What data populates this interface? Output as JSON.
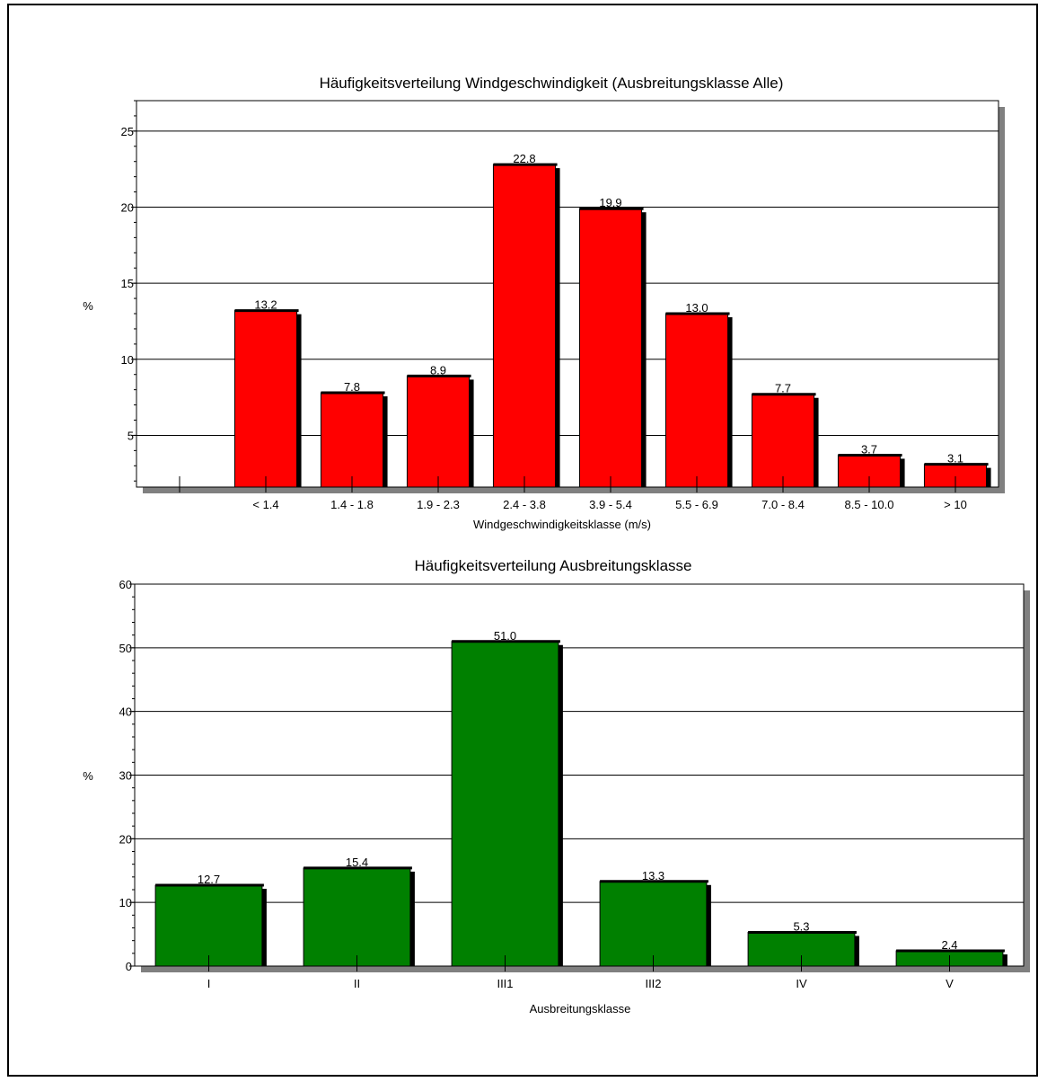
{
  "chart_data": [
    {
      "type": "bar",
      "title": "Häufigkeitsverteilung Windgeschwindigkeit (Ausbreitungsklasse Alle)",
      "xlabel": "Windgeschwindigkeitsklasse (m/s)",
      "ylabel": "%",
      "categories": [
        "",
        "< 1.4",
        "1.4 - 1.8",
        "1.9 - 2.3",
        "2.4 - 3.8",
        "3.9 - 5.4",
        "5.5 - 6.9",
        "7.0 - 8.4",
        "8.5 - 10.0",
        "> 10"
      ],
      "values": [
        null,
        13.2,
        7.8,
        8.9,
        22.8,
        19.9,
        13.0,
        7.7,
        3.7,
        3.1
      ],
      "data_labels": [
        "",
        "13.2",
        "7.8",
        "8.9",
        "22.8",
        "19.9",
        "13.0",
        "7.7",
        "3.7",
        "3.1"
      ],
      "yticks": [
        5,
        10,
        15,
        20,
        25
      ],
      "ylim": [
        1.6,
        27
      ],
      "color": "#ff0000",
      "grid": true
    },
    {
      "type": "bar",
      "title": "Häufigkeitsverteilung Ausbreitungsklasse",
      "xlabel": "Ausbreitungsklasse",
      "ylabel": "%",
      "categories": [
        "I",
        "II",
        "III1",
        "III2",
        "IV",
        "V"
      ],
      "values": [
        12.7,
        15.4,
        51.0,
        13.3,
        5.3,
        2.4
      ],
      "data_labels": [
        "12.7",
        "15.4",
        "51.0",
        "13.3",
        "5.3",
        "2.4"
      ],
      "yticks": [
        0,
        10,
        20,
        30,
        40,
        50,
        60
      ],
      "ylim": [
        0,
        60
      ],
      "color": "#008000",
      "grid": true
    }
  ]
}
